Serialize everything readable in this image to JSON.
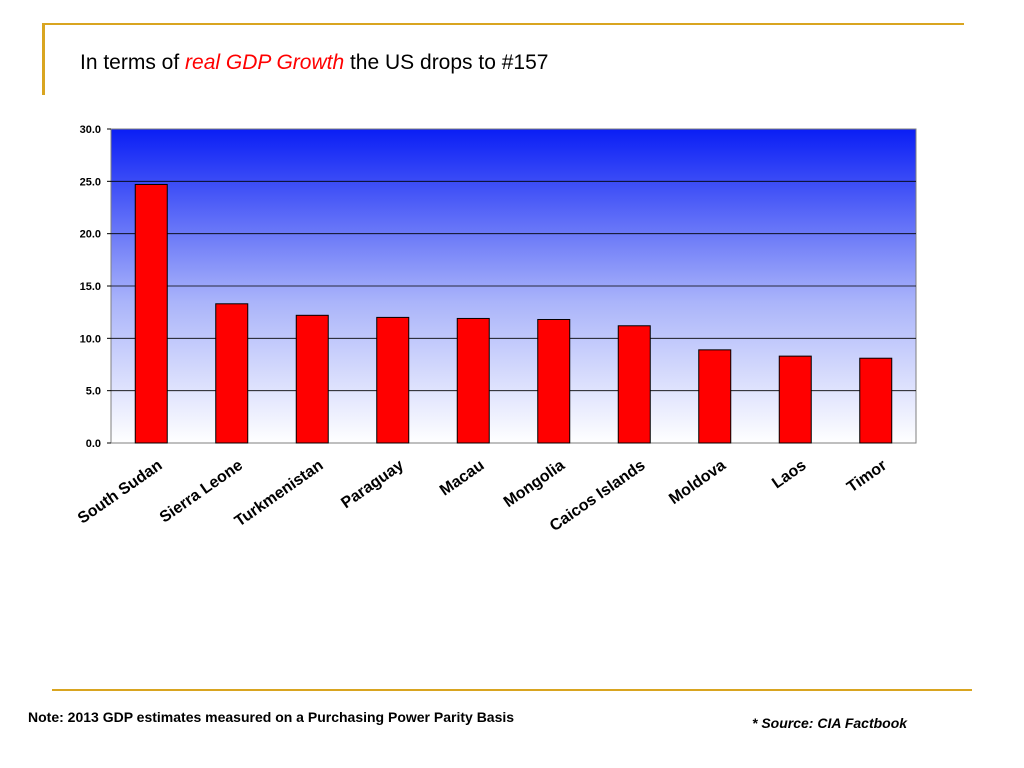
{
  "slide": {
    "title_before": "In terms of ",
    "title_highlight": "real GDP Growth",
    "title_after": " the US drops to #157",
    "note": "Note: 2013 GDP estimates measured on a Purchasing Power Parity Basis",
    "source": "* Source: CIA Factbook"
  },
  "colors": {
    "accent_rule": "#d9a520",
    "bar_fill": "#ff0000",
    "plot_gradient_top": "#0a1ef5",
    "plot_gradient_bottom": "#ffffff",
    "highlight_text": "#ff0000"
  },
  "chart_data": {
    "type": "bar",
    "categories": [
      "South Sudan",
      "Sierra Leone",
      "Turkmenistan",
      "Paraguay",
      "Macau",
      "Mongolia",
      "Caicos Islands",
      "Moldova",
      "Laos",
      "Timor"
    ],
    "values": [
      24.7,
      13.3,
      12.2,
      12.0,
      11.9,
      11.8,
      11.2,
      8.9,
      8.3,
      8.1
    ],
    "title": "",
    "xlabel": "",
    "ylabel": "",
    "ylim": [
      0,
      30
    ],
    "yticks": [
      "0.0",
      "5.0",
      "10.0",
      "15.0",
      "20.0",
      "25.0",
      "30.0"
    ],
    "grid": true,
    "legend": "none"
  }
}
